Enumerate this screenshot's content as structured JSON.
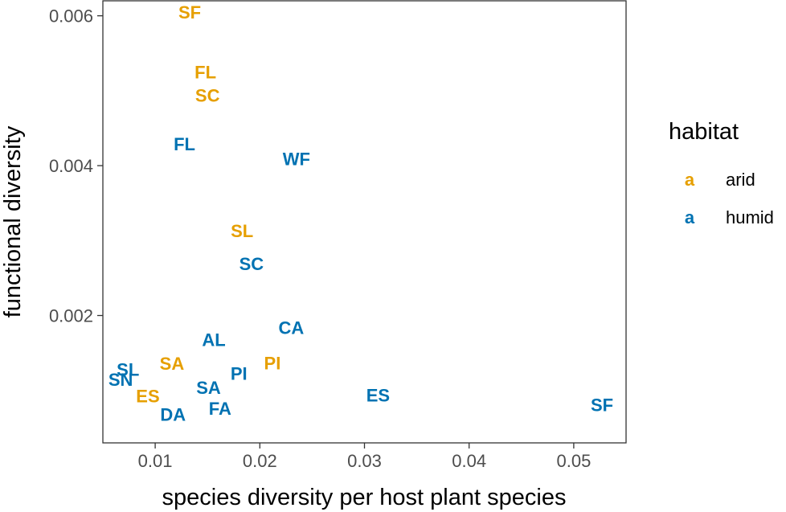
{
  "chart_data": {
    "type": "scatter",
    "title": "",
    "xlabel": "species diversity per host plant species",
    "ylabel": "functional diversity",
    "xlim": [
      0.005,
      0.055
    ],
    "ylim": [
      0.0003,
      0.0062
    ],
    "x_ticks": [
      {
        "value": 0.01,
        "label": "0.01"
      },
      {
        "value": 0.02,
        "label": "0.02"
      },
      {
        "value": 0.03,
        "label": "0.03"
      },
      {
        "value": 0.04,
        "label": "0.04"
      },
      {
        "value": 0.05,
        "label": "0.05"
      }
    ],
    "y_ticks": [
      {
        "value": 0.002,
        "label": "0.002"
      },
      {
        "value": 0.004,
        "label": "0.004"
      },
      {
        "value": 0.006,
        "label": "0.006"
      }
    ],
    "grid": false,
    "legend": {
      "title": "habitat",
      "position": "right",
      "key_glyph": "a",
      "entries": [
        {
          "name": "arid",
          "color": "#E69F00"
        },
        {
          "name": "humid",
          "color": "#0072B2"
        }
      ]
    },
    "series": [
      {
        "name": "arid",
        "color": "#E69F00",
        "points": [
          {
            "label": "SF",
            "x": 0.0133,
            "y": 0.00605
          },
          {
            "label": "FL",
            "x": 0.0148,
            "y": 0.00525
          },
          {
            "label": "SC",
            "x": 0.015,
            "y": 0.00494
          },
          {
            "label": "SL",
            "x": 0.0183,
            "y": 0.00313
          },
          {
            "label": "SA",
            "x": 0.0116,
            "y": 0.00136
          },
          {
            "label": "PI",
            "x": 0.0212,
            "y": 0.00137
          },
          {
            "label": "ES",
            "x": 0.0093,
            "y": 0.00093
          }
        ]
      },
      {
        "name": "humid",
        "color": "#0072B2",
        "points": [
          {
            "label": "FL",
            "x": 0.0128,
            "y": 0.00429
          },
          {
            "label": "WF",
            "x": 0.0235,
            "y": 0.00409
          },
          {
            "label": "SC",
            "x": 0.0192,
            "y": 0.00269
          },
          {
            "label": "CA",
            "x": 0.023,
            "y": 0.00184
          },
          {
            "label": "AL",
            "x": 0.0156,
            "y": 0.00168
          },
          {
            "label": "SL",
            "x": 0.0074,
            "y": 0.00128
          },
          {
            "label": "SN",
            "x": 0.0067,
            "y": 0.00115
          },
          {
            "label": "PI",
            "x": 0.018,
            "y": 0.00123
          },
          {
            "label": "SA",
            "x": 0.0151,
            "y": 0.00104
          },
          {
            "label": "ES",
            "x": 0.0313,
            "y": 0.00094
          },
          {
            "label": "FA",
            "x": 0.0162,
            "y": 0.00076
          },
          {
            "label": "DA",
            "x": 0.0117,
            "y": 0.00068
          },
          {
            "label": "SF",
            "x": 0.0527,
            "y": 0.00081
          }
        ]
      }
    ]
  }
}
